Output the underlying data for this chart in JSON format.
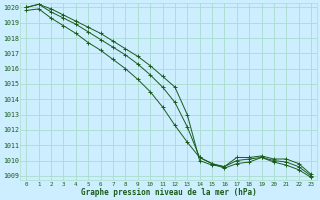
{
  "title": "Graphe pression niveau de la mer (hPa)",
  "bg_color": "#cceeff",
  "grid_color": "#aaddcc",
  "line_color": "#1a5c1a",
  "text_color": "#1a5c1a",
  "xmin": 0,
  "xmax": 23,
  "ymin": 1009,
  "ymax": 1020,
  "yticks": [
    1009,
    1010,
    1011,
    1012,
    1013,
    1014,
    1015,
    1016,
    1017,
    1018,
    1019,
    1020
  ],
  "xticks": [
    0,
    1,
    2,
    3,
    4,
    5,
    6,
    7,
    8,
    9,
    10,
    11,
    12,
    13,
    14,
    15,
    16,
    17,
    18,
    19,
    20,
    21,
    22,
    23
  ],
  "series1": [
    1020.0,
    1020.2,
    1019.9,
    1019.5,
    1019.1,
    1018.7,
    1018.3,
    1017.8,
    1017.3,
    1016.8,
    1016.2,
    1015.5,
    1014.8,
    1013.0,
    1010.0,
    1009.7,
    1009.6,
    1010.2,
    1010.2,
    1010.3,
    1010.1,
    1010.1,
    1009.8,
    1009.1
  ],
  "series2": [
    1020.0,
    1020.2,
    1019.7,
    1019.3,
    1018.9,
    1018.4,
    1017.9,
    1017.4,
    1016.9,
    1016.3,
    1015.6,
    1014.8,
    1013.8,
    1012.2,
    1010.2,
    1009.8,
    1009.6,
    1010.0,
    1010.1,
    1010.2,
    1010.0,
    1009.9,
    1009.6,
    1009.0
  ],
  "series3": [
    1019.8,
    1019.9,
    1019.3,
    1018.8,
    1018.3,
    1017.7,
    1017.2,
    1016.6,
    1016.0,
    1015.3,
    1014.5,
    1013.5,
    1012.3,
    1011.2,
    1010.2,
    1009.8,
    1009.5,
    1009.8,
    1009.9,
    1010.2,
    1009.9,
    1009.7,
    1009.4,
    1008.9
  ]
}
